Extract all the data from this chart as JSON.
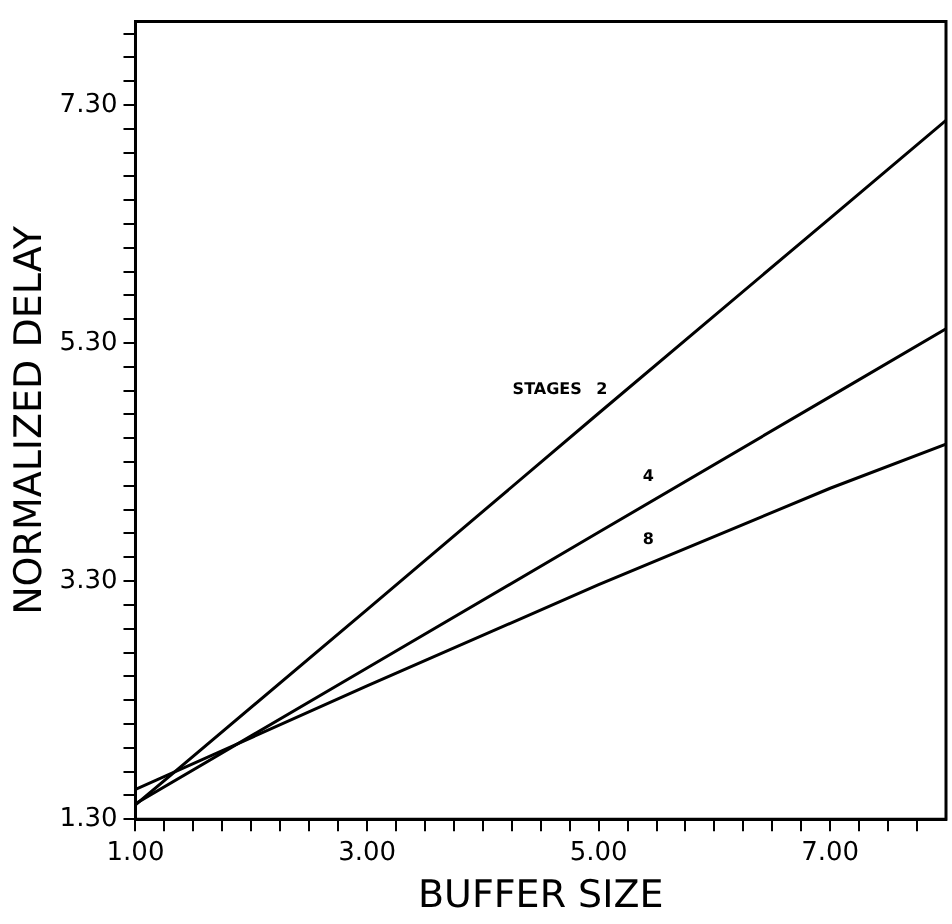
{
  "chart_data": {
    "type": "line",
    "xlabel": "BUFFER SIZE",
    "ylabel": "NORMALIZED DELAY",
    "x": [
      1,
      3,
      5,
      7,
      8
    ],
    "series": [
      {
        "name": "2",
        "color": "#000000",
        "values": [
          1.42,
          3.06,
          4.71,
          6.35,
          7.17
        ]
      },
      {
        "name": "4",
        "color": "#000000",
        "values": [
          1.43,
          2.57,
          3.71,
          4.85,
          5.42
        ]
      },
      {
        "name": "8",
        "color": "#000000",
        "values": [
          1.55,
          2.42,
          3.27,
          4.08,
          4.45
        ]
      }
    ],
    "annotations": [
      "STAGES"
    ],
    "xlim": [
      1,
      8
    ],
    "ylim": [
      1.3,
      8.0
    ],
    "xticks": [
      {
        "value": 1,
        "label": "1.00"
      },
      {
        "value": 1.25,
        "label": null
      },
      {
        "value": 1.5,
        "label": null
      },
      {
        "value": 1.75,
        "label": null
      },
      {
        "value": 2,
        "label": null
      },
      {
        "value": 2.25,
        "label": null
      },
      {
        "value": 2.5,
        "label": null
      },
      {
        "value": 2.75,
        "label": null
      },
      {
        "value": 3,
        "label": "3.00"
      },
      {
        "value": 3.25,
        "label": null
      },
      {
        "value": 3.5,
        "label": null
      },
      {
        "value": 3.75,
        "label": null
      },
      {
        "value": 4,
        "label": null
      },
      {
        "value": 4.25,
        "label": null
      },
      {
        "value": 4.5,
        "label": null
      },
      {
        "value": 4.75,
        "label": null
      },
      {
        "value": 5,
        "label": "5.00"
      },
      {
        "value": 5.25,
        "label": null
      },
      {
        "value": 5.5,
        "label": null
      },
      {
        "value": 5.75,
        "label": null
      },
      {
        "value": 6,
        "label": null
      },
      {
        "value": 6.25,
        "label": null
      },
      {
        "value": 6.5,
        "label": null
      },
      {
        "value": 6.75,
        "label": null
      },
      {
        "value": 7,
        "label": "7.00"
      },
      {
        "value": 7.25,
        "label": null
      },
      {
        "value": 7.5,
        "label": null
      },
      {
        "value": 7.75,
        "label": null
      }
    ],
    "yticks": [
      {
        "value": 1.3,
        "label": "1.30"
      },
      {
        "value": 1.5,
        "label": null
      },
      {
        "value": 1.7,
        "label": null
      },
      {
        "value": 1.9,
        "label": null
      },
      {
        "value": 2.1,
        "label": null
      },
      {
        "value": 2.3,
        "label": null
      },
      {
        "value": 2.5,
        "label": null
      },
      {
        "value": 2.7,
        "label": null
      },
      {
        "value": 2.9,
        "label": null
      },
      {
        "value": 3.1,
        "label": null
      },
      {
        "value": 3.3,
        "label": "3.30"
      },
      {
        "value": 3.5,
        "label": null
      },
      {
        "value": 3.7,
        "label": null
      },
      {
        "value": 3.9,
        "label": null
      },
      {
        "value": 4.1,
        "label": null
      },
      {
        "value": 4.3,
        "label": null
      },
      {
        "value": 4.5,
        "label": null
      },
      {
        "value": 4.7,
        "label": null
      },
      {
        "value": 4.9,
        "label": null
      },
      {
        "value": 5.1,
        "label": null
      },
      {
        "value": 5.3,
        "label": "5.30"
      },
      {
        "value": 5.5,
        "label": null
      },
      {
        "value": 5.7,
        "label": null
      },
      {
        "value": 5.9,
        "label": null
      },
      {
        "value": 6.1,
        "label": null
      },
      {
        "value": 6.3,
        "label": null
      },
      {
        "value": 6.5,
        "label": null
      },
      {
        "value": 6.7,
        "label": null
      },
      {
        "value": 6.9,
        "label": null
      },
      {
        "value": 7.1,
        "label": null
      },
      {
        "value": 7.3,
        "label": "7.30"
      },
      {
        "value": 7.5,
        "label": null
      },
      {
        "value": 7.7,
        "label": null
      },
      {
        "value": 7.9,
        "label": null
      }
    ],
    "grid": false,
    "legend": false,
    "marker": "none",
    "line_style": "solid"
  }
}
